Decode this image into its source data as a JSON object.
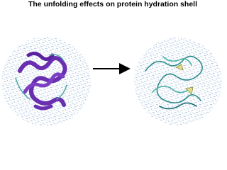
{
  "title": "The unfolding effects on protein hydration shell"
}
